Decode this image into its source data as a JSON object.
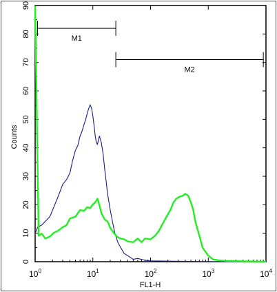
{
  "chart_data": {
    "type": "line",
    "title": "",
    "xlabel": "FL1-H",
    "ylabel": "Counts",
    "xscale": "log",
    "xlim": [
      1,
      10000
    ],
    "ylim": [
      0,
      90
    ],
    "grid": false,
    "x_ticks": [
      {
        "value": 1,
        "base": "10",
        "exp": "0"
      },
      {
        "value": 10,
        "base": "10",
        "exp": "1"
      },
      {
        "value": 100,
        "base": "10",
        "exp": "2"
      },
      {
        "value": 1000,
        "base": "10",
        "exp": "3"
      },
      {
        "value": 10000,
        "base": "10",
        "exp": "4"
      }
    ],
    "y_ticks": [
      0,
      10,
      20,
      30,
      40,
      50,
      60,
      70,
      80,
      90
    ],
    "gates": [
      {
        "label": "M1",
        "x_start": 1.1,
        "x_end": 25,
        "y": 82
      },
      {
        "label": "M2",
        "x_start": 25,
        "x_end": 9000,
        "y": 71
      }
    ],
    "series": [
      {
        "color": "#1a1a8c",
        "x": [
          1,
          1.1,
          1.3,
          1.5,
          1.8,
          2.1,
          2.5,
          3.0,
          3.5,
          4.0,
          4.5,
          5.0,
          5.5,
          6.0,
          6.5,
          7.0,
          7.5,
          8.0,
          8.5,
          9.0,
          9.5,
          10,
          10.5,
          11,
          11.5,
          12,
          12.5,
          13,
          14,
          15,
          16,
          17,
          18,
          20,
          22,
          24,
          27,
          30,
          35,
          40,
          50,
          60,
          80,
          100,
          200,
          500,
          1000,
          10000
        ],
        "y": [
          10,
          12,
          13,
          14,
          16,
          19,
          23,
          27,
          29,
          31,
          36,
          39,
          41,
          44,
          46,
          48,
          50,
          52,
          54,
          55,
          54,
          51,
          48,
          44,
          42,
          41,
          43,
          44,
          42,
          38,
          33,
          28,
          24,
          18,
          14,
          10,
          7,
          5,
          3,
          2,
          1,
          1,
          0.5,
          0.3,
          0.2,
          0.1,
          0,
          0
        ]
      },
      {
        "color": "#22ee22",
        "x": [
          1,
          1.15,
          1.3,
          1.5,
          1.8,
          2.1,
          2.5,
          3.0,
          3.5,
          4.0,
          5.0,
          6.0,
          7.0,
          8.0,
          9.0,
          10,
          11,
          12,
          13,
          14,
          16,
          18,
          20,
          23,
          26,
          30,
          35,
          40,
          50,
          60,
          70,
          80,
          100,
          120,
          140,
          160,
          190,
          220,
          250,
          280,
          320,
          360,
          400,
          450,
          500,
          550,
          600,
          700,
          800,
          1000,
          1200,
          1500,
          2000,
          3000,
          5000,
          10000
        ],
        "y": [
          90,
          9,
          10,
          8,
          9,
          10,
          11,
          12,
          13,
          15,
          16,
          18,
          18,
          19,
          19,
          20,
          21,
          22,
          20,
          17,
          15,
          14,
          12,
          10,
          9,
          8,
          8,
          7,
          7,
          8,
          7,
          8,
          8,
          9,
          11,
          13,
          16,
          18,
          21,
          22,
          23,
          23,
          24,
          23,
          21,
          18,
          14,
          9,
          5,
          2,
          1,
          0.5,
          0.3,
          0.2,
          0.1,
          0
        ]
      }
    ]
  }
}
